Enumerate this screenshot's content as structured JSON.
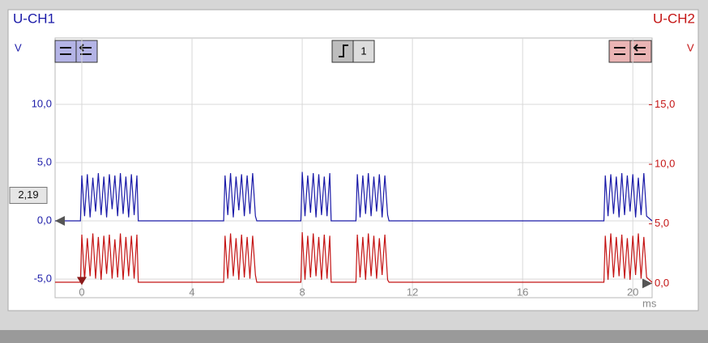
{
  "chart_data": {
    "type": "line",
    "channel_left": "U-CH1",
    "channel_right": "U-CH2",
    "y_unit": "V",
    "y2_unit": "V",
    "x_unit": "ms",
    "trigger_label": "1",
    "cursor_level": {
      "value": 2.19,
      "label": "2,19"
    },
    "xlim": [
      -0.97,
      20.7
    ],
    "xticks": [
      0,
      4,
      8,
      12,
      16,
      20
    ],
    "ylim": [
      -6.6,
      15.7
    ],
    "yticks": [
      {
        "value": -5,
        "label": "-5,0"
      },
      {
        "value": 0,
        "label": "0,0"
      },
      {
        "value": 5,
        "label": "5,0"
      },
      {
        "value": 10,
        "label": "10,0"
      }
    ],
    "y2lim": [
      -1.2,
      20.6
    ],
    "y2ticks": [
      {
        "value": 0,
        "label": "0,0"
      },
      {
        "value": 5,
        "label": "5,0"
      },
      {
        "value": 10,
        "label": "10,0"
      },
      {
        "value": 15,
        "label": "15,0"
      }
    ],
    "grid": true,
    "x": [
      -0.97,
      -0.05,
      0.0,
      0.1,
      0.2,
      0.3,
      0.4,
      0.5,
      0.6,
      0.7,
      0.8,
      0.9,
      1.0,
      1.1,
      1.2,
      1.3,
      1.4,
      1.5,
      1.6,
      1.7,
      1.8,
      1.9,
      2.0,
      2.05,
      5.15,
      5.2,
      5.3,
      5.4,
      5.5,
      5.6,
      5.7,
      5.8,
      5.9,
      6.0,
      6.1,
      6.2,
      6.3,
      6.35,
      7.95,
      8.0,
      8.1,
      8.2,
      8.3,
      8.4,
      8.5,
      8.6,
      8.7,
      8.8,
      8.9,
      9.0,
      9.05,
      9.95,
      10.0,
      10.1,
      10.2,
      10.3,
      10.4,
      10.5,
      10.6,
      10.7,
      10.8,
      10.9,
      11.0,
      11.1,
      11.15,
      18.95,
      19.0,
      19.1,
      19.2,
      19.3,
      19.4,
      19.5,
      19.6,
      19.7,
      19.8,
      19.9,
      20.0,
      20.1,
      20.2,
      20.3,
      20.4,
      20.5,
      20.7
    ],
    "series": [
      {
        "name": "U-CH1",
        "color": "#1a1aa8",
        "axis": "y",
        "values": [
          0,
          0,
          3.9,
          0.4,
          4.0,
          0.3,
          3.7,
          0.8,
          4.1,
          0.5,
          3.8,
          0.3,
          4.0,
          1.0,
          3.9,
          0.4,
          4.1,
          0.6,
          3.8,
          0.3,
          4.0,
          0.5,
          3.9,
          0,
          0,
          3.9,
          0.5,
          4.1,
          0.3,
          3.8,
          0.9,
          4.0,
          0.4,
          3.9,
          0.6,
          4.1,
          0.4,
          0,
          0,
          4.2,
          0.4,
          3.9,
          0.7,
          4.1,
          0.3,
          4.0,
          0.5,
          3.8,
          0.4,
          4.1,
          0,
          0,
          4.0,
          0.3,
          3.9,
          0.6,
          4.1,
          0.4,
          3.8,
          0.8,
          4.0,
          0.3,
          3.9,
          0.5,
          0,
          0,
          3.9,
          0.4,
          4.0,
          0.6,
          3.8,
          0.3,
          4.1,
          0.5,
          3.9,
          0.8,
          4.0,
          0.3,
          3.7,
          0.5,
          4.1,
          0.4,
          0
        ]
      },
      {
        "name": "U-CH2",
        "color": "#c41414",
        "axis": "y2",
        "values": [
          0.1,
          0.1,
          4.1,
          0.3,
          3.8,
          0.6,
          4.2,
          0.4,
          3.9,
          0.3,
          4.0,
          0.8,
          4.1,
          0.4,
          3.7,
          0.5,
          4.2,
          0.3,
          3.9,
          0.6,
          4.0,
          0.4,
          4.1,
          0.1,
          0.1,
          4.0,
          0.4,
          4.2,
          0.6,
          3.8,
          0.3,
          4.1,
          0.5,
          3.9,
          0.4,
          4.0,
          0.7,
          0.1,
          0.1,
          4.3,
          0.3,
          4.0,
          0.5,
          4.2,
          0.6,
          3.9,
          0.3,
          4.1,
          0.4,
          4.0,
          0.1,
          0.1,
          4.1,
          0.5,
          3.9,
          0.3,
          4.2,
          0.6,
          4.0,
          0.4,
          3.8,
          0.7,
          4.1,
          0.3,
          0.1,
          0.1,
          4.0,
          0.3,
          4.2,
          0.5,
          3.9,
          0.6,
          4.1,
          0.4,
          3.8,
          0.3,
          4.0,
          0.7,
          4.2,
          0.4,
          3.9,
          0.5,
          0.1
        ]
      }
    ]
  }
}
